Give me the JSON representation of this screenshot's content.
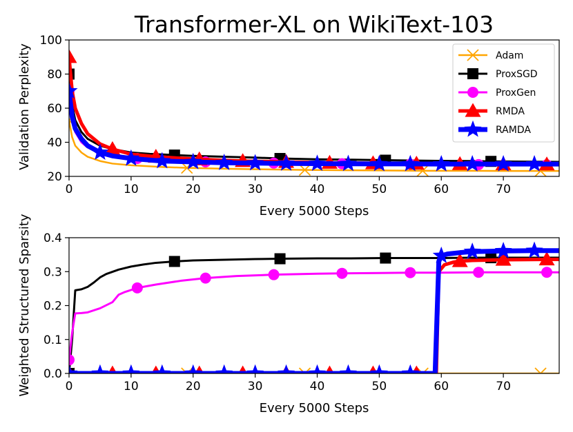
{
  "title": "Transformer-XL on WikiText-103",
  "colors": {
    "Adam": "#ffa500",
    "ProxSGD": "#000000",
    "ProxGen": "#ff00ff",
    "RMDA": "#ff0000",
    "RAMDA": "#0000ff"
  },
  "chart_data": [
    {
      "type": "line",
      "title": "Transformer-XL on WikiText-103",
      "xlabel": "Every 5000 Steps",
      "ylabel": "Validation Perplexity",
      "xlim": [
        0,
        79
      ],
      "ylim": [
        20,
        100
      ],
      "xticks": [
        "0",
        "10",
        "20",
        "30",
        "40",
        "50",
        "60",
        "70"
      ],
      "yticks": [
        "20",
        "40",
        "60",
        "80",
        "100"
      ],
      "legend_position": "top-right",
      "legend": [
        "Adam",
        "ProxSGD",
        "ProxGen",
        "RMDA",
        "RAMDA"
      ],
      "series": [
        {
          "name": "Adam",
          "marker": "x",
          "x": [
            0,
            0.5,
            1,
            2,
            3,
            5,
            7,
            10,
            15,
            19,
            25,
            30,
            38,
            45,
            50,
            57,
            65,
            70,
            76,
            79
          ],
          "y": [
            53,
            43,
            38,
            34,
            31.5,
            29,
            27.5,
            26.5,
            25.5,
            25,
            24.5,
            24.2,
            23.8,
            23.6,
            23.5,
            23.3,
            23.3,
            23.2,
            23.2,
            23.2
          ],
          "marker_x": [
            0,
            19,
            38,
            57,
            76
          ]
        },
        {
          "name": "ProxSGD",
          "marker": "s",
          "x": [
            0,
            0.5,
            1,
            2,
            3,
            5,
            7,
            10,
            13,
            17,
            20,
            25,
            30,
            34,
            40,
            45,
            51,
            55,
            60,
            65,
            68,
            72,
            79
          ],
          "y": [
            80,
            62,
            53,
            46,
            42,
            38,
            36,
            34,
            33.2,
            32.5,
            32,
            31.5,
            31,
            30.5,
            30,
            29.8,
            29.5,
            29.3,
            29.1,
            29,
            28.8,
            28.7,
            28.5
          ],
          "marker_x": [
            0,
            17,
            34,
            51,
            68
          ]
        },
        {
          "name": "ProxGen",
          "marker": "o",
          "x": [
            0,
            0.5,
            1,
            2,
            3,
            5,
            7,
            11,
            15,
            22,
            30,
            33,
            40,
            44,
            50,
            55,
            60,
            66,
            70,
            77,
            79
          ],
          "y": [
            70,
            52,
            46,
            40,
            37,
            34,
            32,
            30.5,
            29.5,
            28.5,
            28,
            27.8,
            27.5,
            27.4,
            27.2,
            27.1,
            27,
            26.9,
            26.9,
            26.8,
            26.8
          ],
          "marker_x": [
            0,
            11,
            22,
            33,
            44,
            55,
            66,
            77
          ]
        },
        {
          "name": "RMDA",
          "marker": "^",
          "x": [
            0,
            0.5,
            1,
            2,
            3,
            5,
            7,
            10,
            14,
            21,
            28,
            35,
            42,
            49,
            56,
            60,
            63,
            70,
            77,
            79
          ],
          "y": [
            90,
            70,
            60,
            51,
            45,
            39,
            36,
            33,
            31.5,
            30,
            29,
            28.5,
            28,
            27.7,
            27.5,
            27.3,
            27.2,
            27.1,
            27,
            27
          ],
          "marker_x": [
            0,
            7,
            14,
            21,
            28,
            35,
            42,
            49,
            56,
            63,
            70,
            77
          ]
        },
        {
          "name": "RAMDA",
          "marker": "*",
          "x": [
            0,
            0.5,
            1,
            2,
            3,
            5,
            7,
            10,
            15,
            20,
            25,
            30,
            35,
            40,
            45,
            50,
            55,
            60,
            65,
            70,
            75,
            79
          ],
          "y": [
            70,
            55,
            48,
            42,
            38,
            34,
            32,
            30.5,
            29,
            28.5,
            28,
            27.8,
            27.6,
            27.5,
            27.4,
            27.3,
            27.3,
            27.2,
            27.2,
            27.2,
            27.2,
            27.2
          ],
          "marker_x": [
            0,
            5,
            10,
            15,
            20,
            25,
            30,
            35,
            40,
            45,
            50,
            55,
            60,
            65,
            70,
            75
          ]
        }
      ]
    },
    {
      "type": "line",
      "xlabel": "Every 5000 Steps",
      "ylabel": "Weighted Structured Sparsity",
      "xlim": [
        0,
        79
      ],
      "ylim": [
        0,
        0.4
      ],
      "xticks": [
        "0",
        "10",
        "20",
        "30",
        "40",
        "50",
        "60",
        "70"
      ],
      "yticks": [
        "0.0",
        "0.1",
        "0.2",
        "0.3",
        "0.4"
      ],
      "series": [
        {
          "name": "Adam",
          "marker": "x",
          "x": [
            0,
            79
          ],
          "y": [
            0,
            0
          ],
          "marker_x": [
            0,
            19,
            38,
            57,
            76
          ]
        },
        {
          "name": "ProxSGD",
          "marker": "s",
          "x": [
            0,
            0.5,
            1,
            2,
            3,
            4,
            5,
            6,
            8,
            10,
            12,
            14,
            17,
            20,
            25,
            30,
            34,
            40,
            45,
            51,
            55,
            60,
            65,
            68,
            72,
            79
          ],
          "y": [
            0,
            0.1,
            0.245,
            0.248,
            0.255,
            0.268,
            0.283,
            0.293,
            0.306,
            0.315,
            0.321,
            0.326,
            0.33,
            0.333,
            0.335,
            0.337,
            0.338,
            0.339,
            0.339,
            0.34,
            0.34,
            0.34,
            0.341,
            0.341,
            0.341,
            0.341
          ],
          "marker_x": [
            0,
            17,
            34,
            51,
            68
          ]
        },
        {
          "name": "ProxGen",
          "marker": "o",
          "x": [
            0,
            0.5,
            1,
            2,
            3,
            5,
            7,
            8,
            9,
            11,
            14,
            18,
            22,
            27,
            33,
            40,
            44,
            50,
            55,
            60,
            66,
            70,
            77,
            79
          ],
          "y": [
            0.04,
            0.12,
            0.177,
            0.178,
            0.18,
            0.192,
            0.21,
            0.232,
            0.24,
            0.252,
            0.262,
            0.273,
            0.281,
            0.287,
            0.291,
            0.294,
            0.295,
            0.296,
            0.297,
            0.297,
            0.298,
            0.298,
            0.298,
            0.298
          ],
          "marker_x": [
            0,
            11,
            22,
            33,
            44,
            55,
            66,
            77
          ]
        },
        {
          "name": "RMDA",
          "marker": "^",
          "x": [
            0,
            59.2,
            59.6,
            60.5,
            62,
            63,
            65,
            70,
            77,
            79
          ],
          "y": [
            0,
            0,
            0.3,
            0.32,
            0.328,
            0.331,
            0.333,
            0.335,
            0.336,
            0.336
          ],
          "marker_x": [
            0,
            7,
            14,
            21,
            28,
            35,
            42,
            49,
            56,
            63,
            70,
            77
          ]
        },
        {
          "name": "RAMDA",
          "marker": "*",
          "x": [
            0,
            59,
            59.6,
            60,
            61,
            63,
            65,
            70,
            75,
            79
          ],
          "y": [
            0,
            0,
            0.33,
            0.347,
            0.352,
            0.356,
            0.359,
            0.361,
            0.362,
            0.362
          ],
          "marker_x": [
            0,
            5,
            10,
            15,
            20,
            25,
            30,
            35,
            40,
            45,
            50,
            55,
            60,
            65,
            70,
            75
          ]
        }
      ]
    }
  ]
}
